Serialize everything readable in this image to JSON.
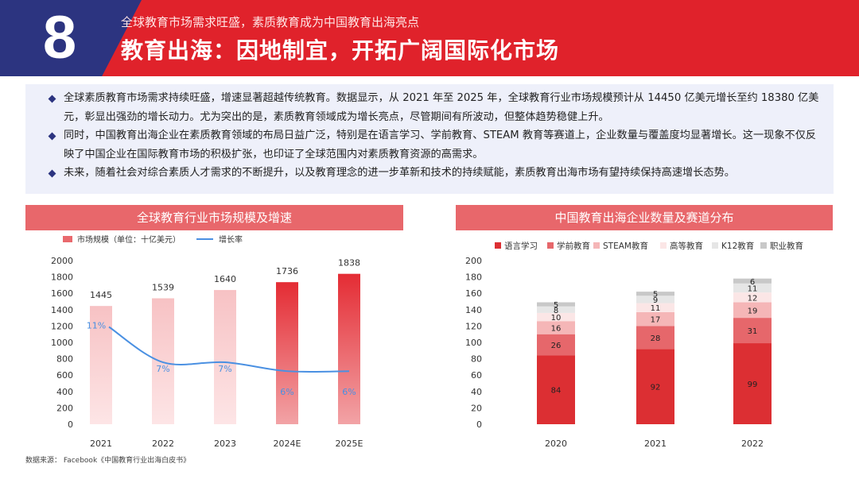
{
  "header": {
    "number": "8",
    "subtitle": "全球教育市场需求旺盛，素质教育成为中国教育出海亮点",
    "title": "教育出海：因地制宜，开拓广阔国际化市场"
  },
  "bullets": [
    "全球素质教育市场需求持续旺盛，增速显著超越传统教育。数据显示，从 2021 年至 2025 年，全球教育行业市场规模预计从 14450 亿美元增长至约 18380 亿美元，彰显出强劲的增长动力。尤为突出的是，素质教育领域成为增长亮点，尽管期间有所波动，但整体趋势稳健上升。",
    "同时，中国教育出海企业在素质教育领域的布局日益广泛，特别是在语言学习、学前教育、STEAM 教育等赛道上，企业数量与覆盖度均显著增长。这一现象不仅反映了中国企业在国际教育市场的积极扩张，也印证了全球范围内对素质教育资源的高需求。",
    "未来，随着社会对综合素质人才需求的不断提升，以及教育理念的进一步革新和技术的持续赋能，素质教育出海市场有望持续保持高速增长态势。"
  ],
  "source": "数据来源： Facebook《中国教育行业出海白皮书》",
  "chart_data": [
    {
      "type": "bar",
      "title": "全球教育行业市场规模及增速",
      "categories": [
        "2021",
        "2022",
        "2023",
        "2024E",
        "2025E"
      ],
      "series": [
        {
          "name": "市场规模（单位：十亿美元）",
          "type": "bar",
          "values": [
            1445,
            1539,
            1640,
            1736,
            1838
          ]
        },
        {
          "name": "增长率",
          "type": "line",
          "values": [
            11,
            7,
            7,
            6,
            6
          ],
          "labels": [
            "11%",
            "7%",
            "7%",
            "6%",
            "6%"
          ]
        }
      ],
      "ylim": [
        0,
        2000
      ],
      "yticks": [
        "0",
        "200",
        "400",
        "600",
        "800",
        "1000",
        "1200",
        "1400",
        "1600",
        "1800",
        "2000"
      ],
      "legend": "top-left",
      "grid": false,
      "colors": {
        "bar_light": "#f9cfd0",
        "bar_dark": "#e8363e",
        "line": "#4a90e2"
      }
    },
    {
      "type": "bar",
      "stacked": true,
      "title": "中国教育出海企业数量及赛道分布",
      "categories": [
        "2020",
        "2021",
        "2022"
      ],
      "series": [
        {
          "name": "语言学习",
          "values": [
            84,
            92,
            99
          ],
          "color": "#dc2f33"
        },
        {
          "name": "学前教育",
          "values": [
            26,
            28,
            31
          ],
          "color": "#e6676b"
        },
        {
          "name": "STEAM教育",
          "values": [
            16,
            17,
            19
          ],
          "color": "#f5b6b7"
        },
        {
          "name": "高等教育",
          "values": [
            10,
            11,
            12
          ],
          "color": "#fbe6e6"
        },
        {
          "name": "K12教育",
          "values": [
            8,
            9,
            11
          ],
          "color": "#e6e6e6"
        },
        {
          "name": "职业教育",
          "values": [
            5,
            5,
            6
          ],
          "color": "#c8c8c8"
        }
      ],
      "ylim": [
        0,
        200
      ],
      "yticks": [
        "0",
        "20",
        "40",
        "60",
        "80",
        "100",
        "120",
        "140",
        "160",
        "180",
        "200"
      ],
      "legend": "top",
      "grid": false
    }
  ]
}
